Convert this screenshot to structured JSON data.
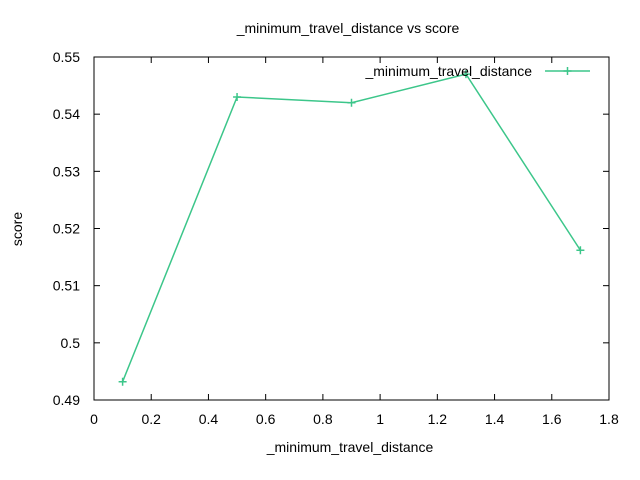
{
  "chart_data": {
    "type": "line",
    "title": "_minimum_travel_distance vs score",
    "xlabel": "_minimum_travel_distance",
    "ylabel": "score",
    "xlim": [
      0,
      1.8
    ],
    "ylim": [
      0.49,
      0.55
    ],
    "x_ticks": [
      "0",
      "0.2",
      "0.4",
      "0.6",
      "0.8",
      "1",
      "1.2",
      "1.4",
      "1.6",
      "1.8"
    ],
    "y_ticks": [
      "0.49",
      "0.5",
      "0.51",
      "0.52",
      "0.53",
      "0.54",
      "0.55"
    ],
    "x_tick_values": [
      0,
      0.2,
      0.4,
      0.6,
      0.8,
      1.0,
      1.2,
      1.4,
      1.6,
      1.8
    ],
    "y_tick_values": [
      0.49,
      0.5,
      0.51,
      0.52,
      0.53,
      0.54,
      0.55
    ],
    "grid": false,
    "legend_position": "top-right",
    "series": [
      {
        "name": "_minimum_travel_distance",
        "color": "#3cc68a",
        "marker": "plus",
        "x": [
          0.1,
          0.5,
          0.9,
          1.3,
          1.7
        ],
        "y": [
          0.4932,
          0.543,
          0.542,
          0.547,
          0.5162
        ]
      }
    ]
  }
}
